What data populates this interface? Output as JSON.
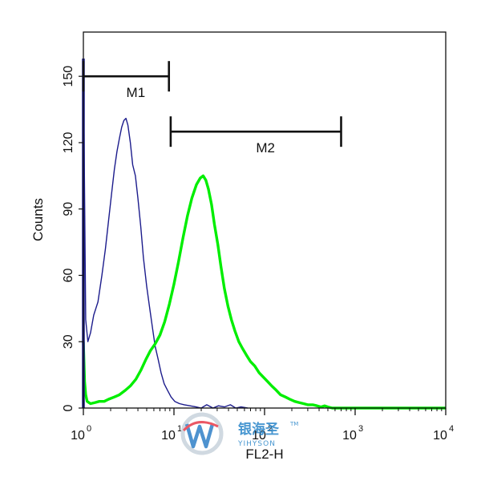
{
  "chart_data": {
    "type": "line",
    "xlabel": "FL2-H",
    "ylabel": "Counts",
    "xscale": "log",
    "xlim": [
      1,
      10000
    ],
    "ylim": [
      0,
      170
    ],
    "x_ticks": [
      {
        "value": 1,
        "base": "10",
        "exp": "0"
      },
      {
        "value": 10,
        "base": "10",
        "exp": "1"
      },
      {
        "value": 100,
        "base": "10",
        "exp": "2"
      },
      {
        "value": 1000,
        "base": "10",
        "exp": "3"
      },
      {
        "value": 10000,
        "base": "10",
        "exp": "4"
      }
    ],
    "y_ticks": [
      0,
      30,
      60,
      90,
      120,
      150
    ],
    "grid": false,
    "series": [
      {
        "color": "#1c1c8c",
        "stroke": "thin",
        "x": [
          1,
          1.06,
          1.12,
          1.2,
          1.3,
          1.45,
          1.6,
          1.75,
          1.9,
          2.05,
          2.2,
          2.35,
          2.5,
          2.65,
          2.8,
          2.95,
          3.1,
          3.3,
          3.5,
          3.75,
          4.0,
          4.3,
          4.6,
          5.0,
          5.4,
          5.8,
          6.2,
          6.7,
          7.2,
          7.8,
          8.5,
          9.3,
          10.2,
          11.5,
          13,
          15,
          17.5,
          20,
          23,
          27,
          31,
          36,
          42,
          48,
          55,
          65
        ],
        "y": [
          158,
          40,
          30,
          34,
          42,
          48,
          60,
          72,
          85,
          97,
          108,
          116,
          122,
          127,
          130,
          131,
          128,
          120,
          110,
          105,
          95,
          82,
          68,
          55,
          45,
          36,
          28,
          22,
          16,
          11,
          8,
          5,
          3,
          2,
          1.5,
          1,
          0.5,
          0,
          1.5,
          0,
          1,
          0.5,
          1.5,
          0,
          0.5,
          0
        ]
      },
      {
        "color": "#00ee00",
        "stroke": "thick",
        "x": [
          1,
          1.03,
          1.06,
          1.1,
          1.2,
          1.35,
          1.5,
          1.7,
          1.9,
          2.2,
          2.5,
          2.9,
          3.3,
          3.8,
          4.3,
          4.9,
          5.5,
          6.2,
          7.0,
          7.9,
          8.9,
          10,
          11.2,
          12.6,
          14.1,
          15.8,
          17.7,
          19.5,
          21,
          22.5,
          24,
          26,
          28,
          30.5,
          33,
          36,
          39.5,
          43,
          47,
          52,
          57,
          63,
          70,
          78,
          87,
          97,
          108,
          120,
          135,
          150,
          170,
          190,
          215,
          240,
          270,
          300,
          340,
          380,
          420,
          460,
          500,
          560,
          700,
          1000,
          2000,
          5000,
          10000
        ],
        "y": [
          30,
          12,
          6,
          3,
          2,
          2.5,
          3,
          3,
          4,
          5,
          6,
          8,
          10,
          13,
          17,
          22,
          26,
          29,
          33,
          39,
          47,
          56,
          66,
          77,
          87,
          95,
          101,
          104,
          105,
          103,
          99,
          92,
          83,
          74,
          64,
          54,
          46,
          40,
          35,
          30,
          27,
          24,
          21,
          19,
          16,
          14,
          12,
          10,
          8,
          6,
          5,
          4,
          3,
          2.5,
          2,
          1.5,
          1.5,
          1,
          0.5,
          1,
          0.5,
          0,
          0,
          0,
          0,
          0,
          0
        ]
      }
    ],
    "markers": [
      {
        "label": "M1",
        "x_start": 1,
        "x_end": 8.8,
        "y": 150
      },
      {
        "label": "M2",
        "x_start": 9.2,
        "x_end": 700,
        "y": 125
      }
    ],
    "watermark": {
      "brand": "银海圣",
      "sub": "YIHYSON",
      "tm": "TM"
    }
  }
}
